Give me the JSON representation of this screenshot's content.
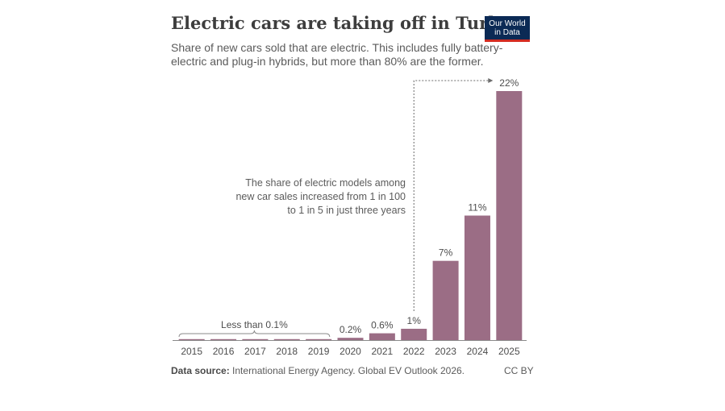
{
  "header": {
    "title": "Electric cars are taking off in Turkey",
    "subtitle": "Share of new cars sold that are electric. This includes fully battery-electric and plug-in hybrids, but more than 80% are the former.",
    "logo_line1": "Our World",
    "logo_line2": "in Data"
  },
  "chart_data": {
    "type": "bar",
    "title": "Electric cars are taking off in Turkey",
    "subtitle": "Share of new cars sold that are electric. This includes fully battery-electric and plug-in hybrids, but more than 80% are the former.",
    "categories": [
      "2015",
      "2016",
      "2017",
      "2018",
      "2019",
      "2020",
      "2021",
      "2022",
      "2023",
      "2024",
      "2025"
    ],
    "values": [
      0.05,
      0.05,
      0.05,
      0.05,
      0.05,
      0.2,
      0.6,
      1,
      7,
      11,
      22
    ],
    "data_labels": [
      "",
      "",
      "",
      "",
      "",
      "0.2%",
      "0.6%",
      "1%",
      "7%",
      "11%",
      "22%"
    ],
    "ylim": [
      0,
      22
    ],
    "bar_color": "#9b6d85",
    "grid": false,
    "annotations": {
      "bracket_label": "Less than 0.1%",
      "note_lines": [
        "The share of electric models among",
        "new car sales increased from 1 in 100",
        "to 1 in 5 in just three years"
      ]
    }
  },
  "footer": {
    "source_label": "Data source:",
    "source_text": "International Energy Agency. Global EV Outlook 2026.",
    "license": "CC BY"
  }
}
